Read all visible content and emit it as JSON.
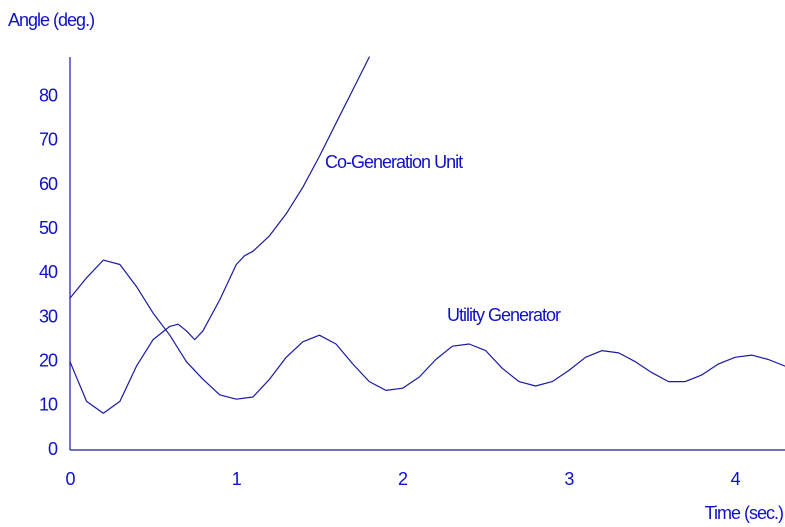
{
  "chart_data": {
    "type": "line",
    "y_label": "Angle (deg.)",
    "x_label": "Time (sec.)",
    "xlim": [
      0,
      4.3
    ],
    "xticks": [
      0,
      1,
      2,
      3,
      4
    ],
    "ylim": [
      0,
      89
    ],
    "yticks": [
      0,
      10,
      20,
      30,
      40,
      50,
      60,
      70,
      80
    ],
    "grid": false,
    "annotations": [
      "Co-Generation Unit",
      "Utility Generator"
    ],
    "series": [
      {
        "name": "Co-Generation Unit",
        "color": "#1a1aa0",
        "x": [
          0,
          0.1,
          0.2,
          0.3,
          0.4,
          0.5,
          0.6,
          0.65,
          0.7,
          0.75,
          0.8,
          0.9,
          1.0,
          1.05,
          1.1,
          1.2,
          1.3,
          1.4,
          1.5,
          1.6,
          1.7,
          1.8
        ],
        "values": [
          20,
          11,
          8.3,
          11,
          19,
          25,
          28,
          28.5,
          27,
          25,
          27,
          34,
          42,
          44,
          45,
          48.5,
          53.5,
          59.5,
          66.5,
          74,
          81.5,
          89
        ]
      },
      {
        "name": "Utility Generator",
        "color": "#1a1aa0",
        "x": [
          0,
          0.1,
          0.2,
          0.3,
          0.4,
          0.5,
          0.6,
          0.7,
          0.8,
          0.9,
          1.0,
          1.1,
          1.2,
          1.3,
          1.4,
          1.5,
          1.6,
          1.7,
          1.8,
          1.9,
          2.0,
          2.1,
          2.2,
          2.3,
          2.4,
          2.5,
          2.6,
          2.7,
          2.8,
          2.9,
          3.0,
          3.1,
          3.2,
          3.3,
          3.4,
          3.5,
          3.6,
          3.7,
          3.8,
          3.9,
          4.0,
          4.1,
          4.2,
          4.3
        ],
        "values": [
          34.4,
          39,
          43,
          42,
          37,
          31,
          26,
          20,
          16,
          12.5,
          11.5,
          12,
          16,
          21,
          24.5,
          26,
          24,
          19.5,
          15.5,
          13.5,
          14,
          16.5,
          20.5,
          23.5,
          24,
          22.5,
          18.5,
          15.5,
          14.5,
          15.5,
          18,
          21,
          22.5,
          22,
          20,
          17.5,
          15.5,
          15.5,
          17,
          19.5,
          21,
          21.5,
          20.5,
          19
        ]
      }
    ]
  }
}
